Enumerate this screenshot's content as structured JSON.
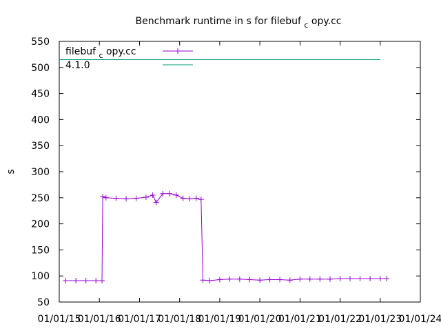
{
  "chart_data": {
    "type": "line",
    "title": "Benchmark runtime in s for filebuf_copy.cc",
    "title_main": "Benchmark runtime in s for filebuf",
    "title_sub": "c",
    "title_rest": "opy.cc",
    "ylabel": "s",
    "xlabel": "",
    "xlim": [
      "2015-01-01",
      "2024-01-01"
    ],
    "ylim": [
      50,
      550
    ],
    "xtick_labels": [
      "01/01/15",
      "01/01/16",
      "01/01/17",
      "01/01/18",
      "01/01/19",
      "01/01/20",
      "01/01/21",
      "01/01/22",
      "01/01/23",
      "01/01/24"
    ],
    "ytick_labels": [
      "50",
      "100",
      "150",
      "200",
      "250",
      "300",
      "350",
      "400",
      "450",
      "500",
      "550"
    ],
    "grid": false,
    "legend_position": "top-left",
    "series": [
      {
        "name": "filebuf_copy.cc",
        "legend_main": "filebuf",
        "legend_sub": "c",
        "legend_rest": "opy.cc",
        "color": "#9400d3",
        "x": [
          "2015-03-01",
          "2015-06-01",
          "2015-09-01",
          "2015-12-01",
          "2016-01-25",
          "2016-02-01",
          "2016-03-01",
          "2016-06-01",
          "2016-09-01",
          "2016-12-01",
          "2017-03-01",
          "2017-05-01",
          "2017-06-01",
          "2017-08-01",
          "2017-10-01",
          "2017-12-01",
          "2018-02-01",
          "2018-04-01",
          "2018-06-01",
          "2018-07-15",
          "2018-08-01",
          "2018-10-01",
          "2019-01-01",
          "2019-04-01",
          "2019-07-01",
          "2019-10-01",
          "2020-01-01",
          "2020-04-01",
          "2020-07-01",
          "2020-10-01",
          "2021-01-01",
          "2021-04-01",
          "2021-07-01",
          "2021-10-01",
          "2022-01-01",
          "2022-04-01",
          "2022-07-01",
          "2022-10-01",
          "2023-01-01",
          "2023-03-01"
        ],
        "y": [
          91,
          91,
          91,
          91,
          91,
          252,
          250,
          249,
          248,
          249,
          251,
          255,
          241,
          258,
          258,
          255,
          249,
          248,
          249,
          247,
          92,
          91,
          93,
          94,
          94,
          93,
          92,
          93,
          93,
          92,
          94,
          94,
          94,
          94,
          95,
          95,
          95,
          95,
          95,
          95
        ]
      },
      {
        "name": "4.1.0",
        "color": "#009e73",
        "x": [
          "2015-01-01",
          "2023-01-01"
        ],
        "y": [
          515,
          515
        ]
      }
    ]
  }
}
